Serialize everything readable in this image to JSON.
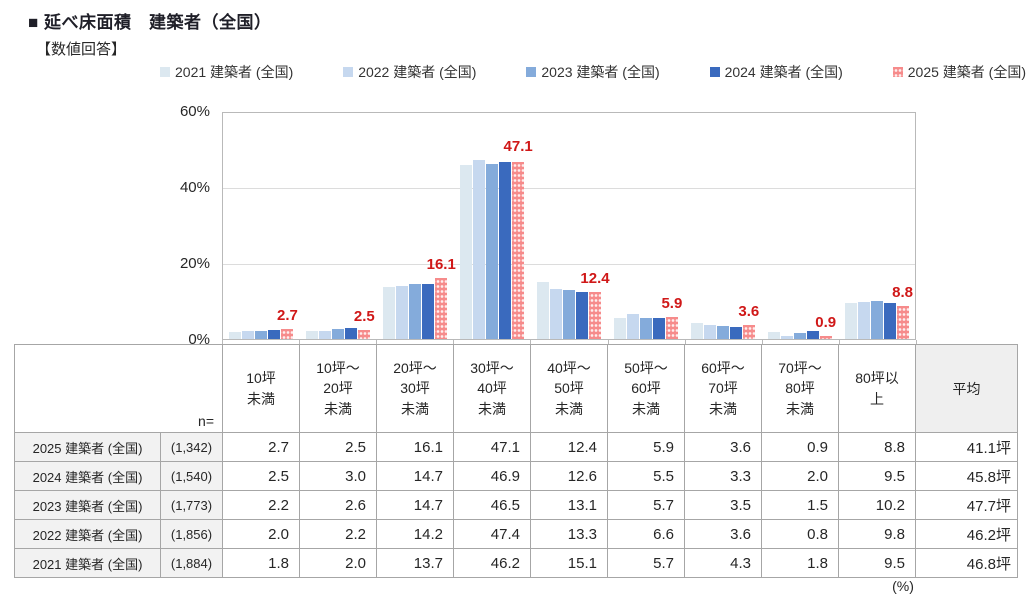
{
  "page": {
    "title": "■ 延べ床面積　建築者（全国）",
    "subtitle": "【数値回答】",
    "percent_note": "(%)"
  },
  "colors": {
    "series_2021": "#dce8f0",
    "series_2022": "#c6d8ef",
    "series_2023": "#84abdb",
    "series_2024": "#3a6abe",
    "series_2025": "#f68b8b",
    "data_label_red": "#d01818",
    "grid": "#dcdcdc",
    "table_border": "#a6a6a6",
    "header_gray": "#f2f2f2"
  },
  "chart_data": {
    "type": "bar",
    "title": "延べ床面積　建築者（全国）【数値回答】",
    "categories": [
      "10坪未満",
      "10坪～20坪未満",
      "20坪～30坪未満",
      "30坪～40坪未満",
      "40坪～50坪未満",
      "50坪～60坪未満",
      "60坪～70坪未満",
      "70坪～80坪未満",
      "80坪以上"
    ],
    "series": [
      {
        "name": "2021 建築者 (全国)",
        "color": "#dce8f0",
        "values": [
          1.8,
          2.0,
          13.7,
          46.2,
          15.1,
          5.7,
          4.3,
          1.8,
          9.5
        ]
      },
      {
        "name": "2022 建築者 (全国)",
        "color": "#c6d8ef",
        "values": [
          2.0,
          2.2,
          14.2,
          47.4,
          13.3,
          6.6,
          3.6,
          0.8,
          9.8
        ]
      },
      {
        "name": "2023 建築者 (全国)",
        "color": "#84abdb",
        "values": [
          2.2,
          2.6,
          14.7,
          46.5,
          13.1,
          5.7,
          3.5,
          1.5,
          10.2
        ]
      },
      {
        "name": "2024 建築者 (全国)",
        "color": "#3a6abe",
        "values": [
          2.5,
          3.0,
          14.7,
          46.9,
          12.6,
          5.5,
          3.3,
          2.0,
          9.5
        ]
      },
      {
        "name": "2025 建築者 (全国)",
        "color": "#f68b8b",
        "pattern": "dots",
        "values": [
          2.7,
          2.5,
          16.1,
          47.1,
          12.4,
          5.9,
          3.6,
          0.9,
          8.8
        ]
      }
    ],
    "data_labels": {
      "series": "2025 建築者 (全国)",
      "values": [
        "2.7",
        "2.5",
        "16.1",
        "47.1",
        "12.4",
        "5.9",
        "3.6",
        "0.9",
        "8.8"
      ],
      "color": "#d01818"
    },
    "ylim": [
      0,
      60
    ],
    "yticks": [
      {
        "label": "60%",
        "value": 60
      },
      {
        "label": "40%",
        "value": 40
      },
      {
        "label": "20%",
        "value": 20
      },
      {
        "label": "0%",
        "value": 0
      }
    ],
    "grid": true,
    "legend_position": "top"
  },
  "table": {
    "n_label": "n=",
    "col_headers": [
      "10坪\n未満",
      "10坪～\n20坪\n未満",
      "20坪～\n30坪\n未満",
      "30坪～\n40坪\n未満",
      "40坪～\n50坪\n未満",
      "50坪～\n60坪\n未満",
      "60坪～\n70坪\n未満",
      "70坪～\n80坪\n未満",
      "80坪以\n上",
      "平均"
    ],
    "rows": [
      {
        "label": "2025 建築者 (全国)",
        "n": "(1,342)",
        "values": [
          "2.7",
          "2.5",
          "16.1",
          "47.1",
          "12.4",
          "5.9",
          "3.6",
          "0.9",
          "8.8"
        ],
        "avg": "41.1坪"
      },
      {
        "label": "2024 建築者 (全国)",
        "n": "(1,540)",
        "values": [
          "2.5",
          "3.0",
          "14.7",
          "46.9",
          "12.6",
          "5.5",
          "3.3",
          "2.0",
          "9.5"
        ],
        "avg": "45.8坪"
      },
      {
        "label": "2023 建築者 (全国)",
        "n": "(1,773)",
        "values": [
          "2.2",
          "2.6",
          "14.7",
          "46.5",
          "13.1",
          "5.7",
          "3.5",
          "1.5",
          "10.2"
        ],
        "avg": "47.7坪"
      },
      {
        "label": "2022 建築者 (全国)",
        "n": "(1,856)",
        "values": [
          "2.0",
          "2.2",
          "14.2",
          "47.4",
          "13.3",
          "6.6",
          "3.6",
          "0.8",
          "9.8"
        ],
        "avg": "46.2坪"
      },
      {
        "label": "2021 建築者 (全国)",
        "n": "(1,884)",
        "values": [
          "1.8",
          "2.0",
          "13.7",
          "46.2",
          "15.1",
          "5.7",
          "4.3",
          "1.8",
          "9.5"
        ],
        "avg": "46.8坪"
      }
    ]
  }
}
